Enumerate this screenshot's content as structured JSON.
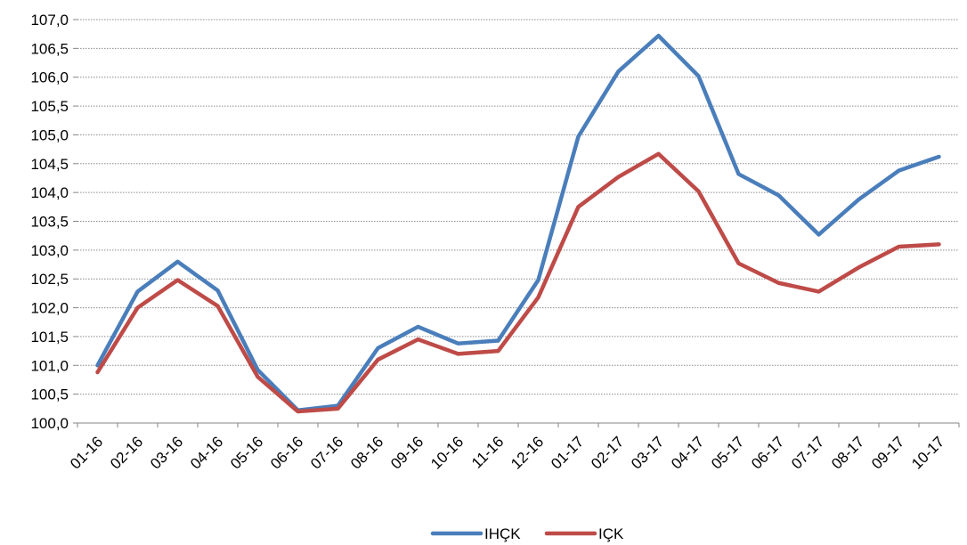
{
  "chart_data": {
    "type": "line",
    "title": "",
    "xlabel": "",
    "ylabel": "",
    "categories": [
      "01-16",
      "02-16",
      "03-16",
      "04-16",
      "05-16",
      "06-16",
      "07-16",
      "08-16",
      "09-16",
      "10-16",
      "11-16",
      "12-16",
      "01-17",
      "02-17",
      "03-17",
      "04-17",
      "05-17",
      "06-17",
      "07-17",
      "08-17",
      "09-17",
      "10-17"
    ],
    "ylim": [
      100.0,
      107.0
    ],
    "y_ticks": [
      "100,0",
      "100,5",
      "101,0",
      "101,5",
      "102,0",
      "102,5",
      "103,0",
      "103,5",
      "104,0",
      "104,5",
      "105,0",
      "105,5",
      "106,0",
      "106,5",
      "107,0"
    ],
    "grid": "horizontal dotted",
    "legend_position": "bottom",
    "series": [
      {
        "name": "IHÇK",
        "color": "#4a7ebb",
        "values": [
          101.0,
          102.28,
          102.8,
          102.3,
          100.92,
          100.22,
          100.3,
          101.3,
          101.67,
          101.38,
          101.43,
          102.48,
          104.97,
          106.1,
          106.72,
          106.02,
          104.32,
          103.95,
          103.27,
          103.88,
          104.38,
          104.62
        ]
      },
      {
        "name": "IÇK",
        "color": "#be4b48",
        "values": [
          100.88,
          102.0,
          102.48,
          102.03,
          100.8,
          100.2,
          100.25,
          101.1,
          101.45,
          101.2,
          101.25,
          102.18,
          103.75,
          104.27,
          104.67,
          104.02,
          102.77,
          102.43,
          102.28,
          102.7,
          103.06,
          103.1
        ]
      }
    ]
  }
}
